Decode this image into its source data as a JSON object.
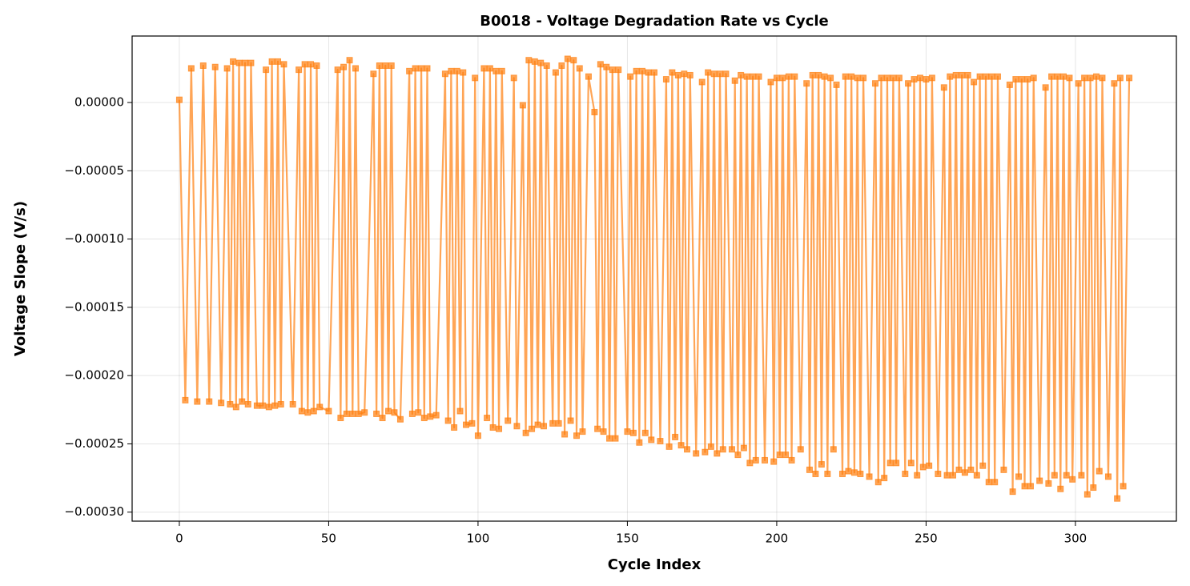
{
  "chart_data": {
    "type": "line",
    "title": "B0018 - Voltage Degradation Rate vs Cycle",
    "x_label": "Cycle Index",
    "y_label": "Voltage Slope (V/s)",
    "color": "#ff7f0e",
    "marker": "square",
    "grid": true,
    "xlim": [
      -15.8,
      333.8
    ],
    "ylim": [
      -0.0003066,
      4.87e-05
    ],
    "xticks": [
      0,
      50,
      100,
      150,
      200,
      250,
      300
    ],
    "yticks": [
      {
        "value": 0,
        "label": "0.00000"
      },
      {
        "value": -5e-05,
        "label": "−0.00005"
      },
      {
        "value": -0.0001,
        "label": "−0.00010"
      },
      {
        "value": -0.00015,
        "label": "−0.00015"
      },
      {
        "value": -0.0002,
        "label": "−0.00020"
      },
      {
        "value": -0.00025,
        "label": "−0.00025"
      },
      {
        "value": -0.0003,
        "label": "−0.00030"
      }
    ],
    "x": [
      0,
      2,
      4,
      6,
      8,
      10,
      12,
      14,
      16,
      17,
      18,
      19,
      20,
      21,
      22,
      23,
      24,
      26,
      28,
      29,
      30,
      31,
      32,
      33,
      34,
      35,
      38,
      40,
      41,
      42,
      43,
      44,
      45,
      46,
      47,
      50,
      53,
      54,
      55,
      56,
      57,
      58,
      59,
      60,
      62,
      65,
      66,
      67,
      68,
      69,
      70,
      71,
      72,
      74,
      77,
      78,
      79,
      80,
      81,
      82,
      83,
      84,
      86,
      89,
      90,
      91,
      92,
      93,
      94,
      95,
      96,
      98,
      99,
      100,
      102,
      103,
      104,
      105,
      106,
      107,
      108,
      110,
      112,
      113,
      115,
      116,
      117,
      118,
      119,
      120,
      121,
      122,
      123,
      125,
      126,
      127,
      128,
      129,
      130,
      131,
      132,
      133,
      134,
      135,
      137,
      139,
      140,
      141,
      142,
      143,
      144,
      145,
      146,
      147,
      150,
      151,
      152,
      153,
      154,
      155,
      156,
      157,
      158,
      159,
      161,
      163,
      164,
      165,
      166,
      167,
      168,
      169,
      170,
      171,
      173,
      175,
      176,
      177,
      178,
      179,
      180,
      181,
      182,
      183,
      185,
      186,
      187,
      188,
      189,
      190,
      191,
      192,
      193,
      194,
      196,
      198,
      199,
      200,
      201,
      202,
      203,
      204,
      205,
      206,
      208,
      210,
      211,
      212,
      213,
      214,
      215,
      216,
      217,
      218,
      219,
      220,
      222,
      223,
      224,
      225,
      226,
      227,
      228,
      229,
      231,
      233,
      234,
      235,
      236,
      237,
      238,
      239,
      240,
      241,
      243,
      244,
      245,
      246,
      247,
      248,
      249,
      250,
      251,
      252,
      254,
      256,
      257,
      258,
      259,
      260,
      261,
      262,
      263,
      264,
      265,
      266,
      267,
      268,
      269,
      270,
      271,
      272,
      273,
      274,
      276,
      278,
      279,
      280,
      281,
      282,
      283,
      284,
      285,
      286,
      288,
      290,
      291,
      292,
      293,
      294,
      295,
      296,
      297,
      298,
      299,
      301,
      302,
      303,
      304,
      305,
      306,
      307,
      308,
      309,
      311,
      313,
      314,
      315,
      316,
      318
    ],
    "values": [
      2e-06,
      -0.000218,
      2.5e-05,
      -0.000219,
      2.7e-05,
      -0.000219,
      2.6e-05,
      -0.00022,
      2.5e-05,
      -0.000221,
      3e-05,
      -0.000223,
      2.9e-05,
      -0.000219,
      2.9e-05,
      -0.000221,
      2.9e-05,
      -0.000222,
      -0.000222,
      2.4e-05,
      -0.000223,
      3e-05,
      -0.000222,
      3e-05,
      -0.000221,
      2.8e-05,
      -0.000221,
      2.4e-05,
      -0.000226,
      2.8e-05,
      -0.000227,
      2.8e-05,
      -0.000226,
      2.7e-05,
      -0.000223,
      -0.000226,
      2.4e-05,
      -0.000231,
      2.6e-05,
      -0.000228,
      3.1e-05,
      -0.000228,
      2.5e-05,
      -0.000228,
      -0.000227,
      2.1e-05,
      -0.000228,
      2.7e-05,
      -0.000231,
      2.7e-05,
      -0.000226,
      2.7e-05,
      -0.000227,
      -0.000232,
      2.3e-05,
      -0.000228,
      2.5e-05,
      -0.000227,
      2.5e-05,
      -0.000231,
      2.5e-05,
      -0.00023,
      -0.000229,
      2.1e-05,
      -0.000233,
      2.3e-05,
      -0.000238,
      2.3e-05,
      -0.000226,
      2.2e-05,
      -0.000236,
      -0.000235,
      1.8e-05,
      -0.000244,
      2.5e-05,
      -0.000231,
      2.5e-05,
      -0.000238,
      2.3e-05,
      -0.000239,
      2.3e-05,
      -0.000233,
      1.8e-05,
      -0.000237,
      -2e-06,
      -0.000242,
      3.1e-05,
      -0.000239,
      3e-05,
      -0.000236,
      2.9e-05,
      -0.000237,
      2.7e-05,
      -0.000235,
      2.2e-05,
      -0.000235,
      2.7e-05,
      -0.000243,
      3.2e-05,
      -0.000233,
      3.1e-05,
      -0.000244,
      2.5e-05,
      -0.000241,
      1.9e-05,
      -7e-06,
      -0.000239,
      2.8e-05,
      -0.000241,
      2.6e-05,
      -0.000246,
      2.4e-05,
      -0.000246,
      2.4e-05,
      -0.000241,
      1.9e-05,
      -0.000242,
      2.3e-05,
      -0.000249,
      2.3e-05,
      -0.000242,
      2.2e-05,
      -0.000247,
      2.2e-05,
      -0.000248,
      1.7e-05,
      -0.000252,
      2.2e-05,
      -0.000245,
      2e-05,
      -0.000251,
      2.1e-05,
      -0.000254,
      2e-05,
      -0.000257,
      1.5e-05,
      -0.000256,
      2.2e-05,
      -0.000252,
      2.1e-05,
      -0.000257,
      2.1e-05,
      -0.000254,
      2.1e-05,
      -0.000254,
      1.6e-05,
      -0.000258,
      2e-05,
      -0.000253,
      1.9e-05,
      -0.000264,
      1.9e-05,
      -0.000262,
      1.9e-05,
      -0.000262,
      1.5e-05,
      -0.000263,
      1.8e-05,
      -0.000258,
      1.8e-05,
      -0.000258,
      1.9e-05,
      -0.000262,
      1.9e-05,
      -0.000254,
      1.4e-05,
      -0.000269,
      2e-05,
      -0.000272,
      2e-05,
      -0.000265,
      1.9e-05,
      -0.000272,
      1.8e-05,
      -0.000254,
      1.3e-05,
      -0.000272,
      1.9e-05,
      -0.00027,
      1.9e-05,
      -0.000271,
      1.8e-05,
      -0.000272,
      1.8e-05,
      -0.000274,
      1.4e-05,
      -0.000278,
      1.8e-05,
      -0.000275,
      1.8e-05,
      -0.000264,
      1.8e-05,
      -0.000264,
      1.8e-05,
      -0.000272,
      1.4e-05,
      -0.000264,
      1.7e-05,
      -0.000273,
      1.8e-05,
      -0.000267,
      1.7e-05,
      -0.000266,
      1.8e-05,
      -0.000272,
      1.1e-05,
      -0.000273,
      1.9e-05,
      -0.000273,
      2e-05,
      -0.000269,
      2e-05,
      -0.000271,
      2e-05,
      -0.000269,
      1.5e-05,
      -0.000273,
      1.9e-05,
      -0.000266,
      1.9e-05,
      -0.000278,
      1.9e-05,
      -0.000278,
      1.9e-05,
      -0.000269,
      1.3e-05,
      -0.000285,
      1.7e-05,
      -0.000274,
      1.7e-05,
      -0.000281,
      1.7e-05,
      -0.000281,
      1.8e-05,
      -0.000277,
      1.1e-05,
      -0.000279,
      1.9e-05,
      -0.000273,
      1.9e-05,
      -0.000283,
      1.9e-05,
      -0.000273,
      1.8e-05,
      -0.000276,
      1.4e-05,
      -0.000273,
      1.8e-05,
      -0.000287,
      1.8e-05,
      -0.000282,
      1.9e-05,
      -0.00027,
      1.8e-05,
      -0.000274,
      1.4e-05,
      -0.00029,
      1.8e-05,
      -0.000281,
      1.8e-05
    ]
  }
}
